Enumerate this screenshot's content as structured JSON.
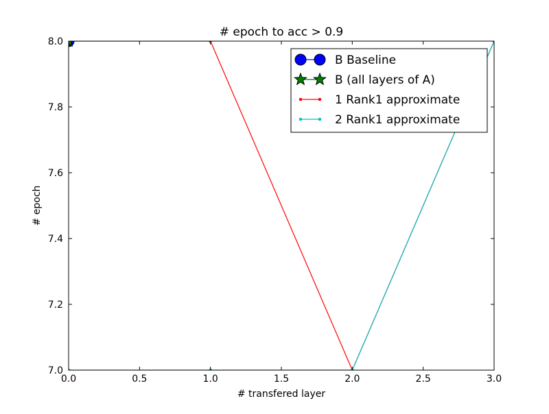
{
  "chart_data": {
    "type": "line",
    "title": "# epoch to acc > 0.9",
    "xlabel": "# transfered layer",
    "ylabel": "# epoch",
    "xlim": [
      0.0,
      3.0
    ],
    "ylim": [
      7.0,
      8.0
    ],
    "xticks": [
      "0.0",
      "0.5",
      "1.0",
      "1.5",
      "2.0",
      "2.5",
      "3.0"
    ],
    "yticks": [
      "7.0",
      "7.2",
      "7.4",
      "7.6",
      "7.8",
      "8.0"
    ],
    "grid": false,
    "legend_position": "top-right",
    "series": [
      {
        "name": "B Baseline",
        "color": "#0000ff",
        "marker": "circle",
        "x": [
          0
        ],
        "y": [
          8
        ]
      },
      {
        "name": "B (all layers of A)",
        "color": "#008000",
        "marker": "star",
        "x": [
          0
        ],
        "y": [
          8
        ]
      },
      {
        "name": "1 Rank1 approximate",
        "color": "#ff0000",
        "marker": "dot",
        "x": [
          0,
          1,
          2,
          3
        ],
        "y": [
          8,
          8,
          7,
          8
        ]
      },
      {
        "name": "2 Rank1 approximate",
        "color": "#00bfbf",
        "marker": "dot",
        "x": [
          0,
          1,
          2,
          3
        ],
        "y": [
          7,
          7,
          7,
          8
        ]
      }
    ]
  }
}
